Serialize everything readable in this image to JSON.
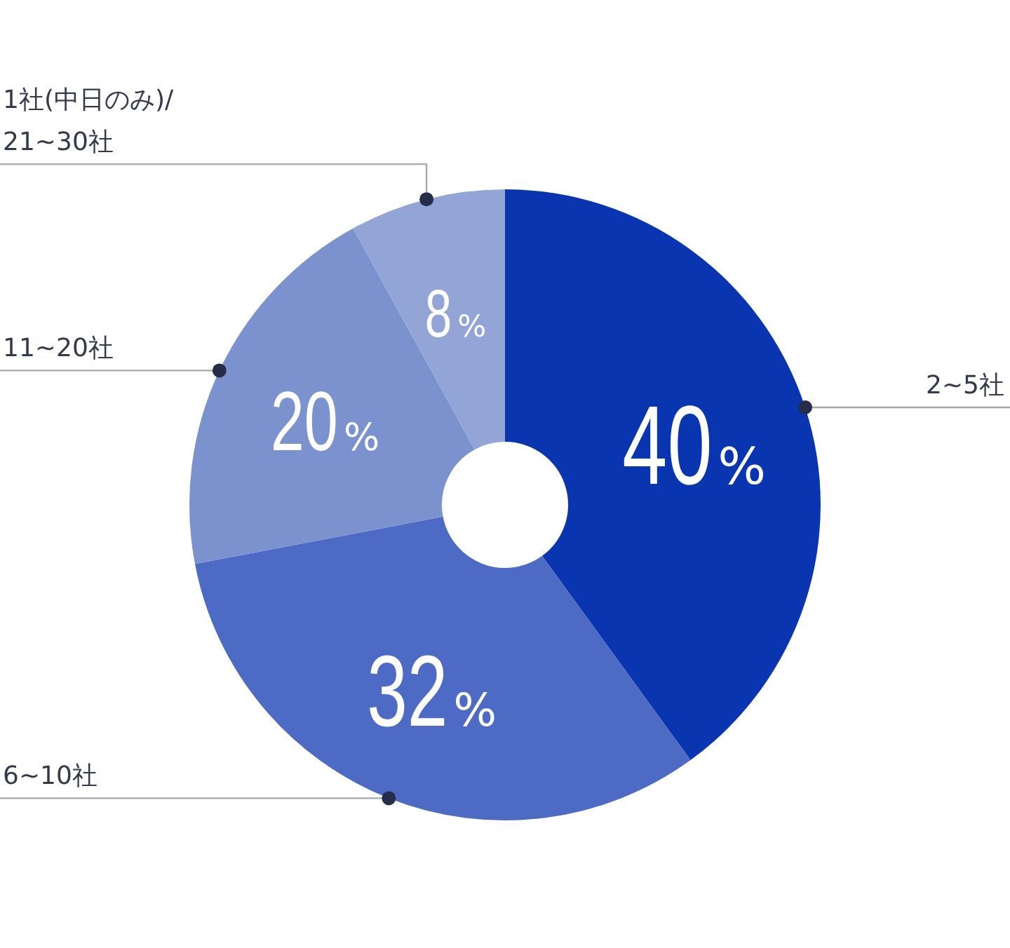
{
  "chart_data": {
    "type": "donut",
    "categories": [
      "2~5社",
      "6~10社",
      "11~20社",
      "1社(中日のみ)/\n21~30社"
    ],
    "values": [
      40,
      32,
      20,
      8
    ],
    "colors": [
      "#0a35b0",
      "#4d6bc4",
      "#7b92cf",
      "#93a5d6"
    ],
    "value_labels": [
      "40%",
      "32%",
      "20%",
      "8%"
    ],
    "legend": false
  }
}
